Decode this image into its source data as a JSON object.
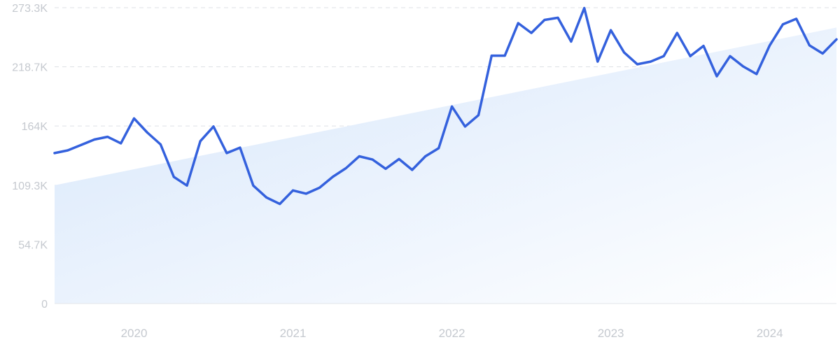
{
  "chart_data": {
    "type": "line",
    "title": "",
    "xlabel": "",
    "ylabel": "",
    "ylim": [
      0,
      273300
    ],
    "grid": true,
    "colors": {
      "line": "#3461dd",
      "trend_fill_top": "#d6e6fb",
      "trend_fill_bottom": "#ffffff",
      "tick_text": "#c5c9cf",
      "grid": "#dde1e6"
    },
    "y_ticks": [
      {
        "value": 0,
        "label": "0"
      },
      {
        "value": 54700,
        "label": "54.7K"
      },
      {
        "value": 109300,
        "label": "109.3K"
      },
      {
        "value": 164000,
        "label": "164K"
      },
      {
        "value": 218700,
        "label": "218.7K"
      },
      {
        "value": 273300,
        "label": "273.3K"
      }
    ],
    "x_ticks": [
      {
        "value": 2020.0,
        "label": "2020"
      },
      {
        "value": 2021.0,
        "label": "2021"
      },
      {
        "value": 2022.0,
        "label": "2022"
      },
      {
        "value": 2023.0,
        "label": "2023"
      },
      {
        "value": 2024.0,
        "label": "2024"
      }
    ],
    "xlim": [
      2019.5,
      2024.42
    ],
    "trend": {
      "x": [
        2019.5,
        2024.42
      ],
      "y": [
        109300,
        255000
      ]
    },
    "series": [
      {
        "x": [
          2019.5,
          2019.583,
          2019.667,
          2019.75,
          2019.833,
          2019.917,
          2020.0,
          2020.083,
          2020.167,
          2020.25,
          2020.333,
          2020.417,
          2020.5,
          2020.583,
          2020.667,
          2020.75,
          2020.833,
          2020.917,
          2021.0,
          2021.083,
          2021.167,
          2021.25,
          2021.333,
          2021.417,
          2021.5,
          2021.583,
          2021.667,
          2021.75,
          2021.833,
          2021.917,
          2022.0,
          2022.083,
          2022.167,
          2022.25,
          2022.333,
          2022.417,
          2022.5,
          2022.583,
          2022.667,
          2022.75,
          2022.833,
          2022.917,
          2023.0,
          2023.083,
          2023.167,
          2023.25,
          2023.333,
          2023.417,
          2023.5,
          2023.583,
          2023.667,
          2023.75,
          2023.833,
          2023.917,
          2024.0,
          2024.083,
          2024.167,
          2024.25,
          2024.333,
          2024.42
        ],
        "values": [
          139000,
          141500,
          146500,
          151500,
          154000,
          148000,
          171000,
          158000,
          147000,
          117000,
          109000,
          150000,
          163500,
          139000,
          144000,
          109000,
          98000,
          92000,
          104500,
          101500,
          107000,
          117000,
          125000,
          136000,
          133000,
          124500,
          133500,
          123500,
          136000,
          143500,
          182000,
          163500,
          174000,
          229000,
          229000,
          259000,
          250000,
          262000,
          264000,
          242000,
          273000,
          223500,
          252500,
          232000,
          221000,
          223500,
          228500,
          250000,
          228500,
          238000,
          210000,
          228500,
          219000,
          212000,
          238500,
          258000,
          263000,
          238500,
          231000,
          244000
        ]
      }
    ]
  }
}
